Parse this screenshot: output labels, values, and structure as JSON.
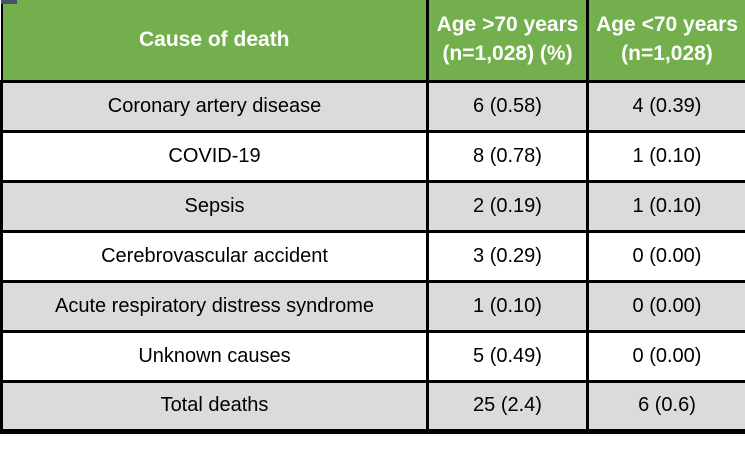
{
  "colors": {
    "header_bg": "#73AF4C",
    "header_text": "#FFFFFF",
    "row_shaded_bg": "#DBDBDB",
    "row_plain_bg": "#FFFFFF",
    "border_color": "#000000",
    "body_text": "#000000",
    "handle_color": "#44546A"
  },
  "table": {
    "header": {
      "cause": "Cause of death",
      "over70_line1": "Age >70 years",
      "over70_line2": "(n=1,028) (%)",
      "under70_line1": "Age <70 years",
      "under70_line2": "(n=1,028)"
    },
    "rows": [
      {
        "cause": "Coronary artery disease",
        "over70": "6 (0.58)",
        "under70": "4 (0.39)"
      },
      {
        "cause": "COVID-19",
        "over70": "8 (0.78)",
        "under70": "1 (0.10)"
      },
      {
        "cause": "Sepsis",
        "over70": "2 (0.19)",
        "under70": "1 (0.10)"
      },
      {
        "cause": "Cerebrovascular accident",
        "over70": "3 (0.29)",
        "under70": "0 (0.00)"
      },
      {
        "cause": "Acute respiratory distress syndrome",
        "over70": "1 (0.10)",
        "under70": "0 (0.00)"
      },
      {
        "cause": "Unknown causes",
        "over70": "5 (0.49)",
        "under70": "0 (0.00)"
      },
      {
        "cause": "Total deaths",
        "over70": "25 (2.4)",
        "under70": "6 (0.6)"
      }
    ]
  }
}
